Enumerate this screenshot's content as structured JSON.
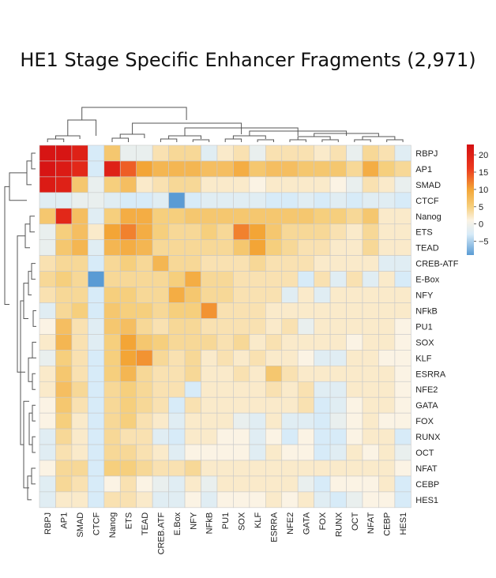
{
  "chart_data": {
    "type": "heatmap",
    "title": "HE1 Stage Specific Enhancer Fragments (2,971)",
    "row_labels": [
      "RBPJ",
      "AP1",
      "SMAD",
      "CTCF",
      "Nanog",
      "ETS",
      "TEAD",
      "CREB-ATF",
      "E-Box",
      "NFY",
      "NFkB",
      "PU1",
      "SOX",
      "KLF",
      "ESRRA",
      "NFE2",
      "GATA",
      "FOX",
      "RUNX",
      "OCT",
      "NFAT",
      "CEBP",
      "HES1"
    ],
    "col_labels": [
      "RBPJ",
      "AP1",
      "SMAD",
      "CTCF",
      "Nanog",
      "ETS",
      "TEAD",
      "CREB.ATF",
      "E.Box",
      "NFY",
      "NFkB",
      "PU1",
      "SOX",
      "KLF",
      "ESRRA",
      "NFE2",
      "GATA",
      "FOX",
      "RUNX",
      "OCT",
      "NFAT",
      "CEBP",
      "HES1"
    ],
    "values": [
      [
        22,
        22,
        20,
        -3,
        6,
        -1,
        -1,
        3,
        4,
        4,
        -2,
        2,
        3,
        -1,
        3,
        3,
        3,
        2,
        3,
        -1,
        4,
        3,
        -2
      ],
      [
        22,
        21,
        19,
        -3,
        20,
        14,
        10,
        8,
        8,
        8,
        7,
        7,
        9,
        6,
        7,
        7,
        6,
        6,
        6,
        4,
        9,
        5,
        4
      ],
      [
        21,
        20,
        6,
        -1,
        5,
        7,
        2,
        3,
        4,
        4,
        2,
        2,
        2,
        1,
        2,
        2,
        2,
        2,
        1,
        -1,
        3,
        2,
        -1
      ],
      [
        -2,
        -2,
        -1,
        -1,
        -2,
        -3,
        -3,
        -2,
        -9,
        -3,
        -2,
        -2,
        -2,
        -2,
        -3,
        -3,
        -2,
        -3,
        -2,
        -3,
        -2,
        -2,
        -3
      ],
      [
        6,
        19,
        7,
        -2,
        5,
        9,
        9,
        5,
        5,
        6,
        6,
        6,
        6,
        6,
        6,
        6,
        6,
        5,
        5,
        4,
        6,
        2,
        2
      ],
      [
        -1,
        5,
        7,
        2,
        10,
        12,
        9,
        5,
        4,
        4,
        5,
        4,
        12,
        10,
        6,
        4,
        4,
        4,
        3,
        2,
        4,
        2,
        2
      ],
      [
        -1,
        6,
        8,
        -2,
        8,
        9,
        8,
        4,
        4,
        4,
        4,
        4,
        6,
        10,
        5,
        4,
        3,
        3,
        2,
        2,
        4,
        2,
        2
      ],
      [
        3,
        4,
        4,
        -3,
        4,
        5,
        4,
        8,
        4,
        4,
        3,
        3,
        3,
        4,
        3,
        3,
        3,
        2,
        2,
        2,
        2,
        -2,
        -2
      ],
      [
        4,
        5,
        4,
        -9,
        4,
        4,
        4,
        4,
        5,
        9,
        4,
        4,
        3,
        3,
        3,
        3,
        -3,
        3,
        -2,
        3,
        -2,
        2,
        -3
      ],
      [
        3,
        4,
        4,
        -3,
        5,
        5,
        4,
        4,
        9,
        6,
        4,
        4,
        3,
        3,
        3,
        -2,
        2,
        -2,
        2,
        2,
        2,
        2,
        2
      ],
      [
        -2,
        4,
        5,
        -3,
        6,
        5,
        5,
        4,
        5,
        5,
        11,
        3,
        3,
        3,
        2,
        2,
        2,
        2,
        2,
        2,
        2,
        2,
        2
      ],
      [
        1,
        7,
        3,
        -2,
        6,
        7,
        4,
        3,
        4,
        4,
        3,
        3,
        3,
        3,
        2,
        3,
        -1,
        2,
        2,
        2,
        2,
        2,
        1
      ],
      [
        2,
        8,
        3,
        -2,
        5,
        10,
        6,
        5,
        4,
        4,
        4,
        3,
        4,
        2,
        3,
        2,
        2,
        2,
        2,
        1,
        2,
        2,
        1
      ],
      [
        -1,
        5,
        3,
        -3,
        5,
        10,
        11,
        4,
        3,
        4,
        2,
        3,
        2,
        3,
        2,
        2,
        1,
        -2,
        -2,
        2,
        2,
        1,
        1
      ],
      [
        2,
        6,
        3,
        -3,
        5,
        8,
        4,
        3,
        3,
        4,
        2,
        2,
        3,
        2,
        6,
        3,
        2,
        2,
        2,
        2,
        2,
        2,
        1
      ],
      [
        2,
        7,
        4,
        -3,
        4,
        5,
        4,
        3,
        3,
        -3,
        2,
        2,
        2,
        2,
        3,
        2,
        3,
        -2,
        -2,
        2,
        2,
        2,
        1
      ],
      [
        1,
        6,
        3,
        -3,
        4,
        5,
        4,
        3,
        -3,
        3,
        2,
        2,
        2,
        2,
        2,
        2,
        3,
        -3,
        -2,
        1,
        2,
        2,
        1
      ],
      [
        1,
        5,
        2,
        -3,
        4,
        5,
        3,
        2,
        -2,
        2,
        2,
        2,
        -1,
        -2,
        2,
        -2,
        -2,
        -3,
        -1,
        1,
        2,
        1,
        1
      ],
      [
        -2,
        4,
        2,
        -3,
        4,
        3,
        3,
        -2,
        -3,
        2,
        2,
        1,
        1,
        -2,
        1,
        -3,
        1,
        -3,
        -3,
        1,
        2,
        2,
        -3
      ],
      [
        -2,
        3,
        2,
        -3,
        4,
        4,
        3,
        2,
        -2,
        1,
        1,
        1,
        1,
        -2,
        2,
        1,
        1,
        -3,
        -2,
        2,
        1,
        2,
        -1
      ],
      [
        1,
        4,
        4,
        -3,
        5,
        5,
        4,
        3,
        3,
        4,
        2,
        2,
        2,
        2,
        2,
        2,
        2,
        2,
        2,
        2,
        2,
        2,
        1
      ],
      [
        -2,
        4,
        3,
        -3,
        1,
        3,
        1,
        -1,
        -2,
        2,
        -1,
        2,
        2,
        2,
        2,
        2,
        -1,
        -3,
        1,
        1,
        1,
        2,
        -3
      ],
      [
        -2,
        2,
        2,
        -3,
        3,
        3,
        2,
        -2,
        -2,
        1,
        -2,
        1,
        1,
        1,
        2,
        1,
        2,
        -2,
        -3,
        -1,
        1,
        1,
        -3
      ]
    ],
    "legend": {
      "ticks": [
        20,
        15,
        10,
        5,
        0,
        -5
      ],
      "min": -9,
      "max": 23,
      "colors": [
        "#5a9bd4",
        "#d7ebf8",
        "#fbf3e4",
        "#f6cf7d",
        "#f3a536",
        "#ec3a1e",
        "#d40f12"
      ]
    }
  }
}
